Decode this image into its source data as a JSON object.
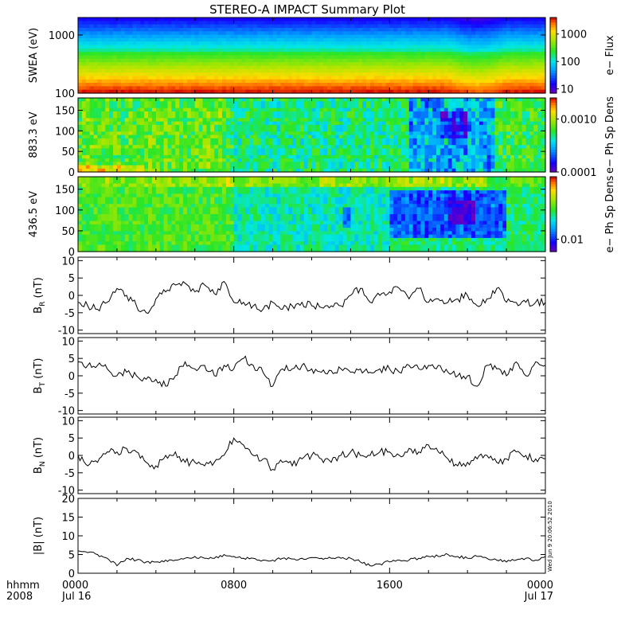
{
  "chart_data": {
    "type": "multi-panel time series",
    "title": "STEREO-A IMPACT Summary Plot",
    "x_axis": {
      "row1_label": "hhmm",
      "row2_label": "2008",
      "ticks": [
        {
          "hour": 0,
          "time": "0000",
          "date": "Jul 16"
        },
        {
          "hour": 8,
          "time": "0800",
          "date": ""
        },
        {
          "hour": 16,
          "time": "1600",
          "date": ""
        },
        {
          "hour": 24,
          "time": "0000",
          "date": "Jul 17"
        }
      ],
      "range_hours": [
        0,
        24
      ]
    },
    "stamp": "Wed Jun 9 20:06:52 2010",
    "panels": [
      {
        "id": "swea",
        "type": "heatmap",
        "ylabel": "SWEA (eV)",
        "yscale": "log",
        "ylim": [
          100,
          2000
        ],
        "yticks": [
          {
            "v": 100,
            "label": "100"
          },
          {
            "v": 1000,
            "label": "1000"
          }
        ],
        "colorbar_label": "e− Flux",
        "cbar_scale": "log",
        "cbar_range": [
          7,
          4000
        ],
        "cbar_ticks": [
          {
            "v": 10,
            "label": "10"
          },
          {
            "v": 100,
            "label": "100"
          },
          {
            "v": 1000,
            "label": "1000"
          }
        ]
      },
      {
        "id": "pad883",
        "type": "heatmap",
        "ylabel": "883.3 eV",
        "ylim": [
          0,
          180
        ],
        "yticks": [
          {
            "v": 0,
            "label": "0"
          },
          {
            "v": 50,
            "label": "50"
          },
          {
            "v": 100,
            "label": "100"
          },
          {
            "v": 150,
            "label": "150"
          }
        ],
        "colorbar_label": "e− Ph Sp Dens",
        "cbar_scale": "log",
        "cbar_range": [
          0.0001,
          0.0025
        ],
        "cbar_ticks": [
          {
            "v": 0.0001,
            "label": "0.0001"
          },
          {
            "v": 0.001,
            "label": "0.0010"
          }
        ]
      },
      {
        "id": "pad436",
        "type": "heatmap",
        "ylabel": "436.5 eV",
        "ylim": [
          0,
          180
        ],
        "yticks": [
          {
            "v": 0,
            "label": "0"
          },
          {
            "v": 50,
            "label": "50"
          },
          {
            "v": 100,
            "label": "100"
          },
          {
            "v": 150,
            "label": "150"
          }
        ],
        "colorbar_label": "e− Ph Sp Dens",
        "cbar_scale": "log",
        "cbar_range": [
          0.007,
          0.06
        ],
        "cbar_ticks": [
          {
            "v": 0.01,
            "label": "0.01"
          }
        ]
      },
      {
        "id": "br",
        "type": "line",
        "ylabel_main": "B",
        "ylabel_sub": "R",
        "ylabel_unit": " (nT)",
        "ylim": [
          -11,
          11
        ],
        "yticks": [
          -10,
          -5,
          0,
          5,
          10
        ],
        "x": [
          0,
          0.5,
          1,
          1.5,
          2,
          2.5,
          3,
          3.5,
          4,
          4.5,
          5,
          5.5,
          6,
          6.5,
          7,
          7.5,
          8,
          8.5,
          9,
          9.5,
          10,
          10.5,
          11,
          11.5,
          12,
          12.5,
          13,
          13.5,
          14,
          14.5,
          15,
          15.5,
          16,
          16.5,
          17,
          17.5,
          18,
          18.5,
          19,
          19.5,
          20,
          20.5,
          21,
          21.5,
          22,
          22.5,
          23,
          23.5,
          24
        ],
        "y": [
          -2,
          -3,
          -4,
          -2,
          2,
          0,
          -3,
          -5,
          -1,
          1,
          3,
          3.5,
          1,
          3,
          0.5,
          4,
          -2,
          -2,
          -3,
          -4,
          -2,
          -4,
          -3,
          -2,
          -3,
          -3.5,
          -3,
          -3,
          0,
          2,
          -2,
          0,
          1,
          2,
          -1,
          2,
          -2,
          -1,
          -2,
          -1,
          0,
          -3,
          -1,
          2,
          -2,
          -2,
          -2,
          -2,
          -2
        ]
      },
      {
        "id": "bt",
        "type": "line",
        "ylabel_main": "B",
        "ylabel_sub": "T",
        "ylabel_unit": " (nT)",
        "ylim": [
          -11,
          11
        ],
        "yticks": [
          -10,
          -5,
          0,
          5,
          10
        ],
        "x": [
          0,
          0.5,
          1,
          1.5,
          2,
          2.5,
          3,
          3.5,
          4,
          4.5,
          5,
          5.5,
          6,
          6.5,
          7,
          7.5,
          8,
          8.5,
          9,
          9.5,
          10,
          10.5,
          11,
          11.5,
          12,
          12.5,
          13,
          13.5,
          14,
          14.5,
          15,
          15.5,
          16,
          16.5,
          17,
          17.5,
          18,
          18.5,
          19,
          19.5,
          20,
          20.5,
          21,
          21.5,
          22,
          22.5,
          23,
          23.5,
          24
        ],
        "y": [
          4,
          3,
          3,
          2,
          0,
          1,
          0,
          -1,
          -1,
          -3,
          0,
          4,
          2,
          3,
          0,
          3,
          2,
          5,
          3,
          1,
          -3,
          2,
          2,
          3,
          2,
          1,
          1.5,
          2,
          1,
          2,
          1,
          2,
          2,
          1,
          3,
          2,
          3,
          3,
          1,
          0,
          0,
          -3,
          3,
          2,
          0,
          4,
          0,
          4,
          3
        ]
      },
      {
        "id": "bn",
        "type": "line",
        "ylabel_main": "B",
        "ylabel_sub": "N",
        "ylabel_unit": " (nT)",
        "ylim": [
          -11,
          11
        ],
        "yticks": [
          -10,
          -5,
          0,
          5,
          10
        ],
        "x": [
          0,
          0.5,
          1,
          1.5,
          2,
          2.5,
          3,
          3.5,
          4,
          4.5,
          5,
          5.5,
          6,
          6.5,
          7,
          7.5,
          8,
          8.5,
          9,
          9.5,
          10,
          10.5,
          11,
          11.5,
          12,
          12.5,
          13,
          13.5,
          14,
          14.5,
          15,
          15.5,
          16,
          16.5,
          17,
          17.5,
          18,
          18.5,
          19,
          19.5,
          20,
          20.5,
          21,
          21.5,
          22,
          22.5,
          23,
          23.5,
          24
        ],
        "y": [
          0,
          -3,
          -2,
          1,
          1,
          2,
          1,
          -2,
          -3,
          0,
          1,
          -2,
          -2,
          -3,
          -2,
          0,
          5,
          3,
          0,
          -1,
          -4,
          -2,
          -3,
          -1,
          0,
          -1,
          -2,
          0,
          1,
          0,
          0,
          1,
          1,
          0,
          2,
          1,
          3,
          1,
          -1,
          -3,
          -2,
          -1,
          0,
          -2,
          -1,
          1,
          0,
          -1,
          -1
        ]
      },
      {
        "id": "bmag",
        "type": "line",
        "ylabel_main": "|B|",
        "ylabel_sub": "",
        "ylabel_unit": " (nT)",
        "ylim": [
          0,
          20
        ],
        "yticks": [
          0,
          5,
          10,
          15,
          20
        ],
        "x": [
          0,
          0.5,
          1,
          1.5,
          2,
          2.5,
          3,
          3.5,
          4,
          4.5,
          5,
          5.5,
          6,
          6.5,
          7,
          7.5,
          8,
          8.5,
          9,
          9.5,
          10,
          10.5,
          11,
          11.5,
          12,
          12.5,
          13,
          13.5,
          14,
          14.5,
          15,
          15.5,
          16,
          16.5,
          17,
          17.5,
          18,
          18.5,
          19,
          19.5,
          20,
          20.5,
          21,
          21.5,
          22,
          22.5,
          23,
          23.5,
          24
        ],
        "y": [
          6,
          5.5,
          5,
          4,
          2,
          4,
          3.5,
          3,
          3,
          3.5,
          3.5,
          4,
          4.5,
          4,
          4,
          5,
          4.5,
          4,
          4,
          3.5,
          3.5,
          4,
          3.8,
          4,
          4.2,
          4,
          4,
          4,
          4,
          3,
          2,
          2.5,
          3,
          3.5,
          3.5,
          4,
          4.5,
          4.5,
          5,
          4.5,
          4,
          4.5,
          4,
          3.5,
          3,
          3.5,
          4,
          3.5,
          4.5
        ]
      }
    ]
  }
}
